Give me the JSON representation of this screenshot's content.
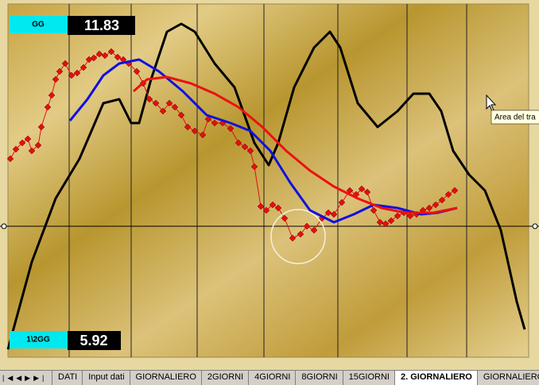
{
  "chart_data": {
    "type": "line",
    "xlim": [
      0,
      655
    ],
    "ylim": [
      -165,
      280
    ],
    "xticks": [
      77,
      155,
      238,
      322,
      415,
      502,
      577
    ],
    "yticks": [
      0
    ],
    "grid": true,
    "series": [
      {
        "color": "#000000",
        "width": 3,
        "markers": false,
        "x": [
          0,
          30,
          60,
          90,
          120,
          140,
          155,
          165,
          180,
          200,
          218,
          235,
          260,
          285,
          310,
          328,
          340,
          360,
          385,
          405,
          418,
          440,
          465,
          490,
          510,
          530,
          545,
          560,
          580,
          600,
          620,
          640,
          650
        ],
        "values": [
          -155,
          -45,
          35,
          85,
          155,
          160,
          130,
          130,
          185,
          245,
          255,
          245,
          205,
          175,
          105,
          77,
          105,
          175,
          225,
          245,
          225,
          155,
          125,
          145,
          167,
          167,
          145,
          95,
          65,
          45,
          -5,
          -95,
          -130
        ]
      },
      {
        "color": "#e01010",
        "width": 1,
        "markers": true,
        "x": [
          3,
          10,
          18,
          25,
          30,
          38,
          42,
          50,
          55,
          60,
          65,
          72,
          80,
          87,
          95,
          102,
          108,
          115,
          122,
          130,
          138,
          145,
          152,
          162,
          170,
          178,
          186,
          195,
          203,
          210,
          218,
          226,
          235,
          245,
          252,
          260,
          270,
          280,
          290,
          298,
          305,
          310,
          318,
          325,
          333,
          340,
          348,
          358,
          368,
          376,
          385,
          395,
          403,
          410,
          420,
          430,
          438,
          445,
          452,
          460,
          468,
          475,
          482,
          490,
          498,
          506,
          514,
          522,
          530,
          538,
          546,
          554,
          562
        ],
        "values": [
          85,
          97,
          105,
          110,
          95,
          102,
          125,
          150,
          165,
          185,
          195,
          205,
          190,
          193,
          200,
          210,
          212,
          217,
          215,
          220,
          213,
          210,
          205,
          195,
          180,
          160,
          155,
          145,
          155,
          150,
          140,
          125,
          120,
          115,
          135,
          130,
          130,
          123,
          105,
          100,
          95,
          75,
          25,
          20,
          27,
          23,
          10,
          -15,
          -10,
          0,
          -5,
          10,
          17,
          15,
          30,
          45,
          40,
          47,
          43,
          20,
          5,
          3,
          7,
          13,
          17,
          13,
          15,
          20,
          23,
          27,
          33,
          40,
          45
        ]
      },
      {
        "color": "#1010e0",
        "width": 3,
        "markers": false,
        "x": [
          78,
          100,
          120,
          140,
          165,
          190,
          220,
          250,
          280,
          305,
          330,
          355,
          380,
          410,
          435,
          460,
          490,
          520,
          540,
          565
        ],
        "values": [
          133,
          160,
          190,
          205,
          210,
          195,
          170,
          140,
          130,
          120,
          95,
          55,
          20,
          5,
          15,
          27,
          23,
          15,
          17,
          23
        ]
      },
      {
        "color": "#ee1010",
        "width": 3,
        "markers": false,
        "x": [
          158,
          175,
          200,
          230,
          260,
          290,
          320,
          350,
          380,
          410,
          440,
          470,
          500,
          535,
          565
        ],
        "values": [
          170,
          185,
          188,
          180,
          167,
          150,
          125,
          95,
          70,
          50,
          35,
          23,
          17,
          17,
          23
        ]
      }
    ]
  },
  "indicators": [
    {
      "label": "GG",
      "value": "11.83"
    },
    {
      "label": "1\\2GG",
      "value": "5.92"
    }
  ],
  "tooltip": "Area del tra",
  "sheet_tabs": [
    "DATI",
    "Input dati",
    "GIORNALIERO",
    "2GIORNI",
    "4GIORNI",
    "8GIORNI",
    "15GIORNI",
    "2. GIORNALIERO",
    "GIORNALIERO"
  ],
  "active_tab": 7
}
